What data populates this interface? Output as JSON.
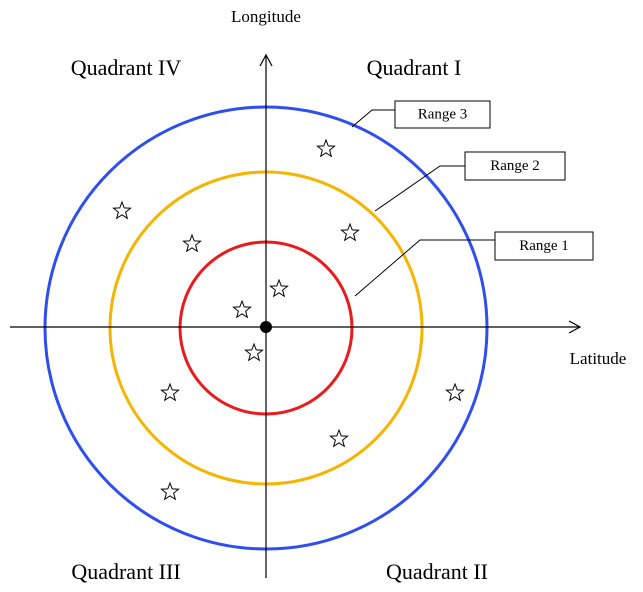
{
  "axes": {
    "vertical_label": "Longitude",
    "horizontal_label": "Latitude"
  },
  "quadrants": {
    "top_left": "Quadrant IV",
    "top_right": "Quadrant I",
    "bottom_left": "Quadrant III",
    "bottom_right": "Quadrant II"
  },
  "ranges": [
    "Range 1",
    "Range 2",
    "Range 3"
  ]
}
